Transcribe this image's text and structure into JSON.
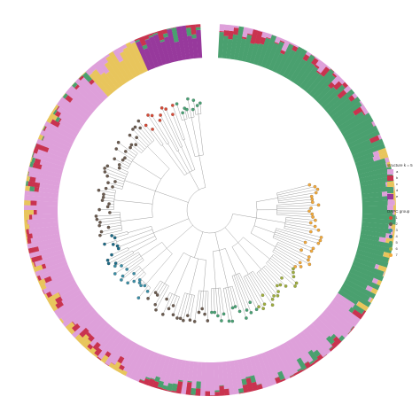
{
  "colors": {
    "a": "#dea0da",
    "b": "#c9334f",
    "c": "#e8c55c",
    "d": "#4aa06f",
    "e": "#97399c"
  },
  "group_colors": [
    "#d84a36",
    "#6b5b4f",
    "#3a8ea6",
    "#1d6a86",
    "#49a275",
    "#9fae3f",
    "#f2a93b"
  ],
  "legend": {
    "structure": {
      "title": "structure k = 5",
      "items": [
        {
          "label": "a",
          "color": "#dea0da"
        },
        {
          "label": "b",
          "color": "#c9334f"
        },
        {
          "label": "c",
          "color": "#e8c55c"
        },
        {
          "label": "d",
          "color": "#4aa06f"
        },
        {
          "label": "e",
          "color": "#97399c"
        }
      ]
    },
    "group": {
      "title": "DAPC group",
      "items": [
        {
          "label": "1",
          "color": "#d84a36"
        },
        {
          "label": "2",
          "color": "#6b5b4f"
        },
        {
          "label": "3",
          "color": "#3a8ea6"
        },
        {
          "label": "4",
          "color": "#1d6a86"
        },
        {
          "label": "5",
          "color": "#49a275"
        },
        {
          "label": "6",
          "color": "#9fae3f"
        },
        {
          "label": "7",
          "color": "#f2a93b"
        }
      ]
    }
  },
  "ring": {
    "start_angle_deg": 3,
    "end_angle_deg": 357,
    "n_samples": 236,
    "sample_clusters": [
      {
        "from": 0,
        "to": 44,
        "dominant": "d",
        "noise": [
          "b",
          "a"
        ]
      },
      {
        "from": 44,
        "to": 80,
        "dominant": "d",
        "noise": [
          "a",
          "c"
        ]
      },
      {
        "from": 80,
        "to": 134,
        "dominant": "a",
        "noise": [
          "d",
          "b"
        ]
      },
      {
        "from": 134,
        "to": 182,
        "dominant": "a",
        "noise": [
          "b",
          "c"
        ]
      },
      {
        "from": 182,
        "to": 210,
        "dominant": "a",
        "noise": [
          "b",
          "d",
          "c"
        ]
      },
      {
        "from": 210,
        "to": 222,
        "dominant": "c",
        "noise": [
          "a"
        ]
      },
      {
        "from": 222,
        "to": 236,
        "dominant": "e",
        "noise": [
          "d",
          "b"
        ]
      }
    ]
  },
  "tree": {
    "clades": [
      {
        "group": 7,
        "tips": 30
      },
      {
        "group": 6,
        "tips": 18
      },
      {
        "group": 5,
        "tips": 16
      },
      {
        "group": 2,
        "tips": 22
      },
      {
        "group": 3,
        "tips": 14
      },
      {
        "group": 4,
        "tips": 10
      },
      {
        "group": 2,
        "tips": 40
      },
      {
        "group": 1,
        "tips": 12
      },
      {
        "group": 5,
        "tips": 8
      }
    ]
  }
}
